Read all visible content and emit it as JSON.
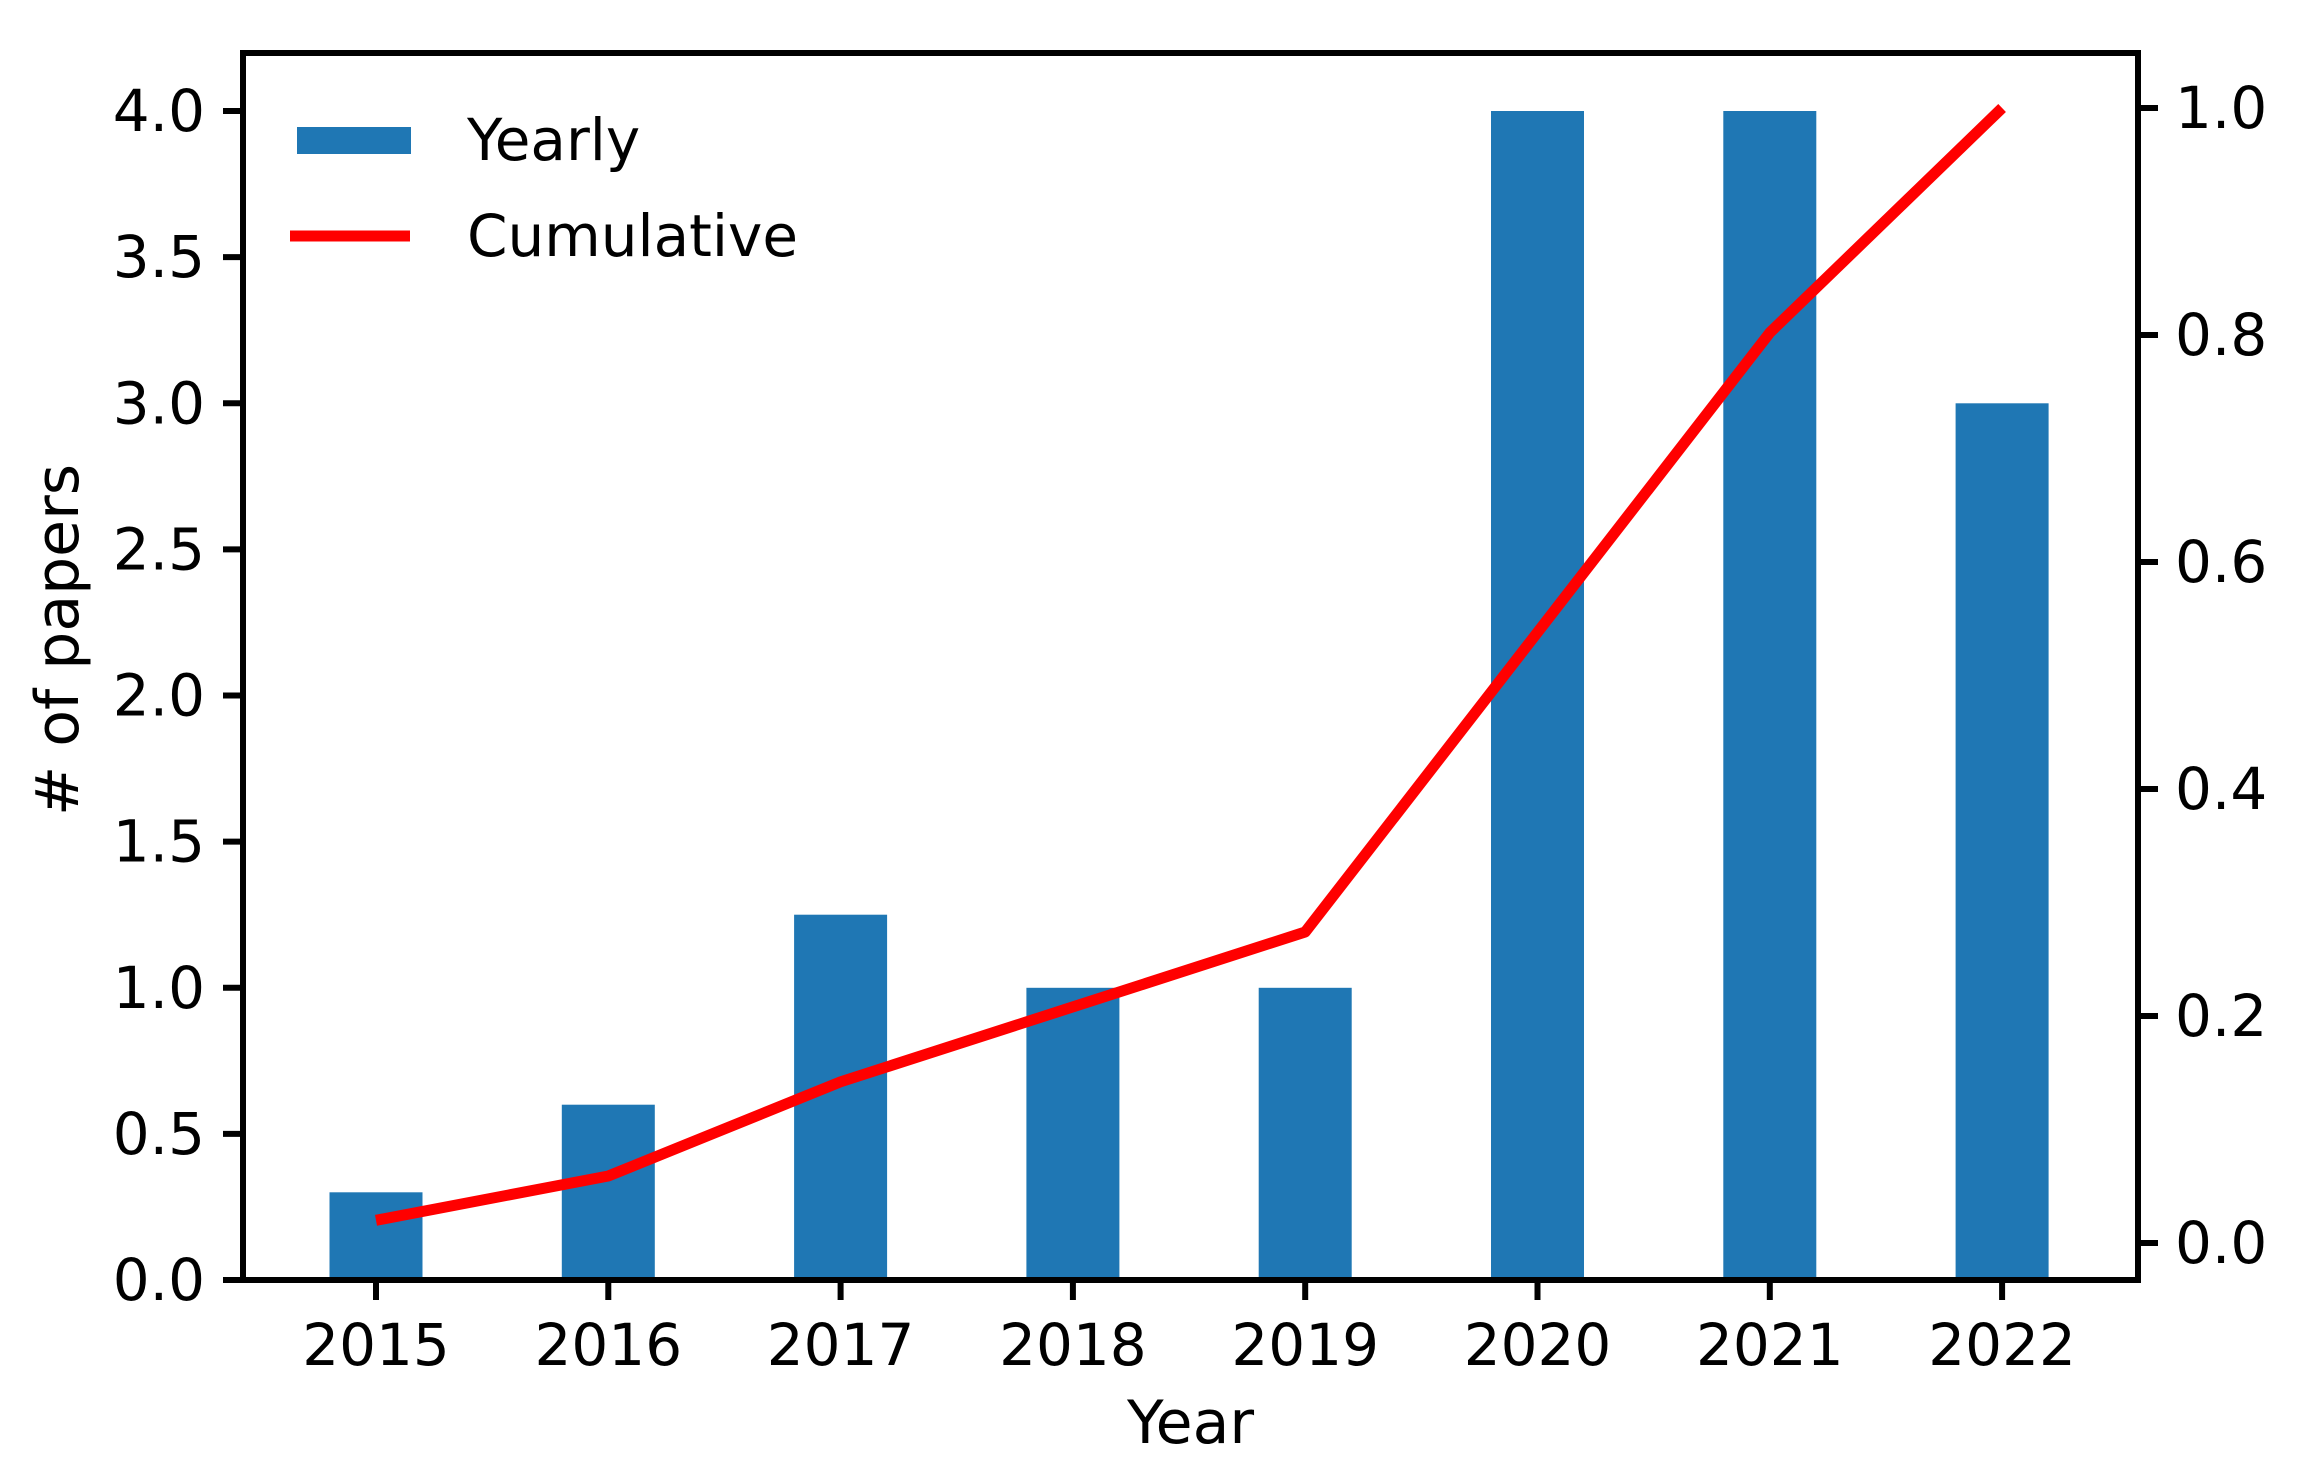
{
  "chart_data": {
    "type": "bar+line",
    "title": "",
    "xlabel": "Year",
    "ylabel_left": "# of papers",
    "ylabel_right": "",
    "categories": [
      "2015",
      "2016",
      "2017",
      "2018",
      "2019",
      "2020",
      "2021",
      "2022"
    ],
    "series": [
      {
        "name": "Yearly",
        "type": "bar",
        "axis": "left",
        "color": "#1f77b4",
        "values": [
          0.3,
          0.6,
          1.25,
          1.0,
          1.0,
          4.0,
          4.0,
          3.0
        ]
      },
      {
        "name": "Cumulative",
        "type": "line",
        "axis": "right",
        "color": "#ff0000",
        "values": [
          0.02,
          0.059,
          0.142,
          0.208,
          0.274,
          0.538,
          0.802,
          1.0
        ]
      }
    ],
    "left_axis": {
      "min": 0.0,
      "max": 4.0,
      "tick_step": 0.5,
      "tick_labels": [
        "0.0",
        "0.5",
        "1.0",
        "1.5",
        "2.0",
        "2.5",
        "3.0",
        "3.5",
        "4.0"
      ]
    },
    "right_axis": {
      "min": 0.0,
      "max": 1.0,
      "tick_step": 0.2,
      "tick_labels": [
        "0.0",
        "0.2",
        "0.4",
        "0.6",
        "0.8",
        "1.0"
      ]
    },
    "legend": {
      "position": "upper-left",
      "entries": [
        "Yearly",
        "Cumulative"
      ]
    },
    "grid": false,
    "background": "#ffffff",
    "text_color": "#000000"
  }
}
